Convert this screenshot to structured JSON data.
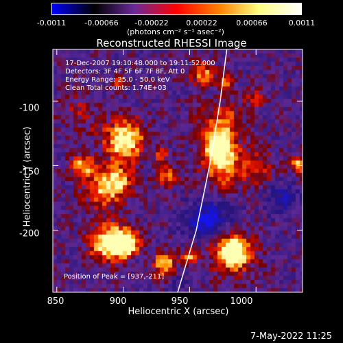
{
  "colorbar": {
    "ticks": [
      "-0.0011",
      "-0.00066",
      "-0.00022",
      "0.00022",
      "0.00066",
      "0.0011"
    ],
    "units": "(photons cm⁻² s⁻¹ asec⁻²)",
    "range": [
      -0.0011,
      0.0011
    ],
    "colors": [
      "#0000ff",
      "#000000",
      "#6a2a9a",
      "#ff0000",
      "#ff8000",
      "#ffff80",
      "#ffffff"
    ]
  },
  "chart_data": {
    "type": "heatmap",
    "title": "Reconstructed RHESSI Image",
    "xlabel": "Heliocentric X (arcsec)",
    "ylabel": "Heliocentric Y (arcsec)",
    "xlim": [
      847,
      1035
    ],
    "ylim": [
      -248,
      -60
    ],
    "xticks": [
      "850",
      "900",
      "950",
      "1000"
    ],
    "yticks": [
      "-100",
      "-150",
      "-200"
    ],
    "info_lines": [
      "17-Dec-2007 19:10:48.000 to 19:11:52.000",
      "Detectors: 3F 4F 5F 6F 7F 8F, Att 0",
      "Energy Range: 25.0 - 50.0 keV",
      "Clean    Total counts: 1.74E+03"
    ],
    "peak_label": "Position of Peak = [937,-211]",
    "limb_curve": [
      [
        941,
        -248
      ],
      [
        955,
        -200
      ],
      [
        965,
        -150
      ],
      [
        973,
        -100
      ],
      [
        978,
        -60
      ]
    ]
  },
  "timestamp": "7-May-2022 11:25"
}
